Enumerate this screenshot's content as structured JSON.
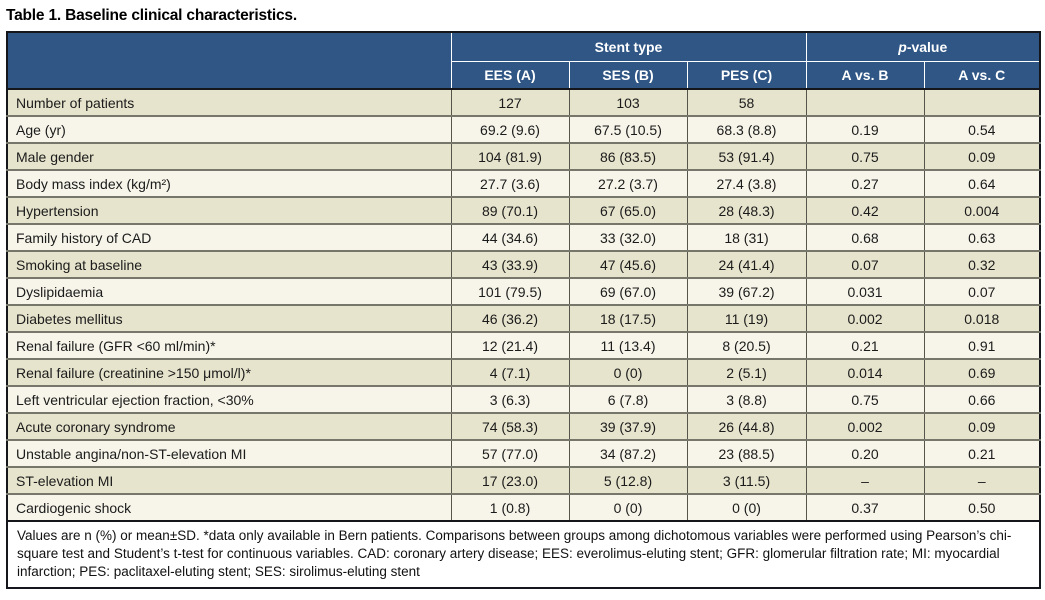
{
  "title": "Table 1. Baseline clinical characteristics.",
  "colors": {
    "header_bg": "#2f5685",
    "header_text": "#ffffff",
    "row_odd_bg": "#e7e4cd",
    "row_even_bg": "#f7f5e9",
    "grid_line": "#56554c",
    "outer_border": "#15151c"
  },
  "header": {
    "stent_group_label": "Stent type",
    "p_italic": "p",
    "p_rest": "-value",
    "subcolumns": [
      "EES (A)",
      "SES (B)",
      "PES (C)",
      "A vs. B",
      "A vs. C"
    ]
  },
  "rows": [
    {
      "label": "Number of patients",
      "values": [
        "127",
        "103",
        "58",
        "",
        ""
      ]
    },
    {
      "label": "Age (yr)",
      "values": [
        "69.2 (9.6)",
        "67.5 (10.5)",
        "68.3 (8.8)",
        "0.19",
        "0.54"
      ]
    },
    {
      "label": "Male gender",
      "values": [
        "104 (81.9)",
        "86 (83.5)",
        "53 (91.4)",
        "0.75",
        "0.09"
      ]
    },
    {
      "label": "Body mass index (kg/m²)",
      "values": [
        "27.7 (3.6)",
        "27.2 (3.7)",
        "27.4 (3.8)",
        "0.27",
        "0.64"
      ]
    },
    {
      "label": "Hypertension",
      "values": [
        "89 (70.1)",
        "67 (65.0)",
        "28 (48.3)",
        "0.42",
        "0.004"
      ]
    },
    {
      "label": "Family history of CAD",
      "values": [
        "44 (34.6)",
        "33 (32.0)",
        "18 (31)",
        "0.68",
        "0.63"
      ]
    },
    {
      "label": "Smoking at baseline",
      "values": [
        "43 (33.9)",
        "47 (45.6)",
        "24 (41.4)",
        "0.07",
        "0.32"
      ]
    },
    {
      "label": "Dyslipidaemia",
      "values": [
        "101 (79.5)",
        "69 (67.0)",
        "39 (67.2)",
        "0.031",
        "0.07"
      ]
    },
    {
      "label": "Diabetes mellitus",
      "values": [
        "46 (36.2)",
        "18 (17.5)",
        "11 (19)",
        "0.002",
        "0.018"
      ]
    },
    {
      "label": "Renal failure (GFR <60 ml/min)*",
      "values": [
        "12 (21.4)",
        "11 (13.4)",
        "8 (20.5)",
        "0.21",
        "0.91"
      ]
    },
    {
      "label": "Renal failure (creatinine >150 μmol/l)*",
      "values": [
        "4 (7.1)",
        "0 (0)",
        "2 (5.1)",
        "0.014",
        "0.69"
      ]
    },
    {
      "label": "Left ventricular ejection fraction, <30%",
      "values": [
        "3 (6.3)",
        "6 (7.8)",
        "3 (8.8)",
        "0.75",
        "0.66"
      ]
    },
    {
      "label": "Acute coronary syndrome",
      "values": [
        "74 (58.3)",
        "39 (37.9)",
        "26 (44.8)",
        "0.002",
        "0.09"
      ]
    },
    {
      "label": "Unstable angina/non-ST-elevation MI",
      "values": [
        "57 (77.0)",
        "34 (87.2)",
        "23 (88.5)",
        "0.20",
        "0.21"
      ]
    },
    {
      "label": "ST-elevation MI",
      "values": [
        "17 (23.0)",
        "5 (12.8)",
        "3 (11.5)",
        "–",
        "–"
      ]
    },
    {
      "label": "Cardiogenic shock",
      "values": [
        "1 (0.8)",
        "0 (0)",
        "0 (0)",
        "0.37",
        "0.50"
      ]
    }
  ],
  "footnote": "Values are n (%) or mean±SD. *data only available in Bern patients. Comparisons between groups among dichotomous variables were performed using Pearson’s chi-square test and Student’s t-test for continuous variables.  CAD: coronary artery disease; EES: everolimus-eluting stent; GFR: glomerular filtration rate; MI: myocardial infarction; PES: paclitaxel-eluting stent; SES: sirolimus-eluting stent"
}
